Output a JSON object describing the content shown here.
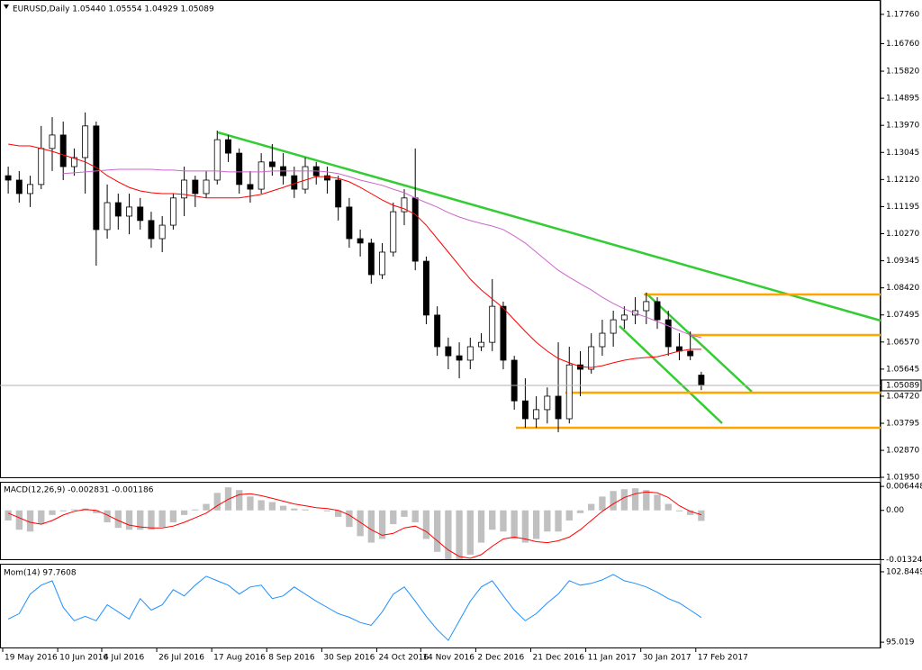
{
  "chart_data": [
    {
      "type": "candlestick",
      "title": "EURUSD,Daily 1.05440 1.05554 1.04929 1.05089",
      "categories": [
        "19 May 2016",
        null,
        null,
        null,
        null,
        "10 Jun 2016",
        null,
        null,
        null,
        "4 Jul 2016",
        null,
        null,
        null,
        null,
        "26 Jul 2016",
        null,
        null,
        null,
        null,
        "17 Aug 2016",
        null,
        null,
        null,
        null,
        "8 Sep 2016",
        null,
        null,
        null,
        null,
        "30 Sep 2016",
        null,
        null,
        null,
        null,
        "24 Oct 2016",
        null,
        null,
        null,
        "14 Nov 2016",
        null,
        null,
        null,
        null,
        "2 Dec 2016",
        null,
        null,
        null,
        null,
        "21 Dec 2016",
        null,
        null,
        null,
        null,
        "11 Jan 2017",
        null,
        null,
        null,
        null,
        "30 Jan 2017",
        null,
        null,
        null,
        null,
        "17 Feb 2017"
      ],
      "open": [
        1.1225,
        1.121,
        1.1164,
        1.1195,
        1.1318,
        1.1364,
        1.1256,
        1.1287,
        1.1395,
        1.1041,
        1.1133,
        1.1087,
        1.1118,
        1.1072,
        1.101,
        1.1056,
        1.1149,
        1.121,
        1.1164,
        1.121,
        1.1348,
        1.1302,
        1.1195,
        1.1179,
        1.1272,
        1.1256,
        1.1225,
        1.1179,
        1.1256,
        1.1225,
        1.121,
        1.1118,
        1.101,
        1.0995,
        1.0887,
        1.0964,
        1.1102,
        1.1149,
        1.0933,
        1.0749,
        1.0641,
        1.061,
        1.0595,
        1.0641,
        1.0656,
        1.0779,
        1.0595,
        1.0456,
        1.0395,
        1.0426,
        1.0472,
        1.0395,
        1.0579,
        1.0564,
        1.0641,
        1.0687,
        1.0733,
        1.0749,
        1.0764,
        1.0795,
        1.0733,
        1.0641,
        1.0626,
        1.0544
      ],
      "high": [
        1.1256,
        1.1241,
        1.1225,
        1.1395,
        1.1425,
        1.141,
        1.1318,
        1.1441,
        1.141,
        1.1195,
        1.1164,
        1.1164,
        1.1149,
        1.1102,
        1.1087,
        1.1164,
        1.1256,
        1.1225,
        1.1241,
        1.1379,
        1.1364,
        1.1318,
        1.1241,
        1.1302,
        1.1333,
        1.1302,
        1.1256,
        1.1287,
        1.1272,
        1.1256,
        1.1225,
        1.1149,
        1.1041,
        1.101,
        1.0995,
        1.1133,
        1.1179,
        1.1318,
        1.0949,
        1.0779,
        1.0672,
        1.0656,
        1.0672,
        1.0687,
        1.0872,
        1.0795,
        1.061,
        1.0533,
        1.0472,
        1.0502,
        1.0656,
        1.0641,
        1.0626,
        1.0687,
        1.0733,
        1.0764,
        1.0779,
        1.081,
        1.0826,
        1.081,
        1.0764,
        1.0687,
        1.0693,
        1.05554
      ],
      "low": [
        1.1164,
        1.1133,
        1.1118,
        1.1179,
        1.1241,
        1.121,
        1.1225,
        1.1164,
        1.0918,
        1.101,
        1.1041,
        1.1025,
        1.1041,
        1.0979,
        1.0964,
        1.1041,
        1.1087,
        1.1118,
        1.1149,
        1.1195,
        1.1272,
        1.1164,
        1.1133,
        1.1164,
        1.1225,
        1.1195,
        1.1149,
        1.1164,
        1.1195,
        1.1164,
        1.1072,
        1.0979,
        1.0949,
        1.0856,
        1.0872,
        1.0949,
        1.1056,
        1.0902,
        1.0718,
        1.061,
        1.0564,
        1.0533,
        1.0564,
        1.0626,
        1.0626,
        1.0564,
        1.0426,
        1.0364,
        1.0364,
        1.0379,
        1.0349,
        1.0379,
        1.0472,
        1.0549,
        1.061,
        1.0641,
        1.0702,
        1.0718,
        1.0718,
        1.0702,
        1.061,
        1.0595,
        1.0595,
        1.04929
      ],
      "close": [
        1.121,
        1.1164,
        1.1195,
        1.1318,
        1.1364,
        1.1256,
        1.1287,
        1.1395,
        1.1041,
        1.1133,
        1.1087,
        1.1118,
        1.1072,
        1.101,
        1.1056,
        1.1149,
        1.121,
        1.1164,
        1.121,
        1.1348,
        1.1302,
        1.1195,
        1.1179,
        1.1272,
        1.1256,
        1.1225,
        1.1179,
        1.1256,
        1.1225,
        1.121,
        1.1118,
        1.101,
        1.0995,
        1.0887,
        1.0964,
        1.1102,
        1.1149,
        1.0933,
        1.0749,
        1.0641,
        1.061,
        1.0595,
        1.0641,
        1.0656,
        1.0779,
        1.0595,
        1.0456,
        1.0395,
        1.0426,
        1.0472,
        1.0395,
        1.0579,
        1.0564,
        1.0641,
        1.0687,
        1.0733,
        1.0749,
        1.0764,
        1.0795,
        1.0733,
        1.0641,
        1.0626,
        1.061,
        1.05089
      ],
      "overlays": [
        {
          "color": "#ff0000",
          "values": [
            1.1333,
            1.1327,
            1.1327,
            1.1318,
            1.1308,
            1.1296,
            1.1284,
            1.1272,
            1.1253,
            1.1225,
            1.1204,
            1.1185,
            1.1173,
            1.1167,
            1.1164,
            1.1164,
            1.1161,
            1.1155,
            1.1149,
            1.1149,
            1.1149,
            1.1149,
            1.1155,
            1.1161,
            1.1173,
            1.1185,
            1.1198,
            1.121,
            1.1222,
            1.1222,
            1.1216,
            1.1204,
            1.1185,
            1.1164,
            1.1142,
            1.1124,
            1.1112,
            1.1093,
            1.1056,
            1.101,
            1.0964,
            1.0918,
            1.0872,
            1.0835,
            1.0804,
            1.0773,
            1.0733,
            1.0693,
            1.0656,
            1.0626,
            1.0601,
            1.0586,
            1.0573,
            1.057,
            1.0576,
            1.0586,
            1.0595,
            1.0601,
            1.0604,
            1.0607,
            1.0616,
            1.0626,
            1.0632,
            1.0632
          ]
        },
        {
          "color": "#cc66cc",
          "values": [
            null,
            null,
            null,
            null,
            null,
            1.1232,
            1.1235,
            1.1238,
            1.1241,
            1.1244,
            1.1247,
            1.1247,
            1.1247,
            1.1247,
            1.1244,
            1.1244,
            1.1241,
            1.1241,
            1.1241,
            1.1241,
            1.1238,
            1.1238,
            1.1238,
            1.1238,
            1.1241,
            1.1241,
            1.1241,
            1.1241,
            1.1241,
            1.1238,
            1.1232,
            1.1222,
            1.121,
            1.1201,
            1.1192,
            1.1179,
            1.1167,
            1.1149,
            1.1133,
            1.1118,
            1.1099,
            1.1084,
            1.1072,
            1.1062,
            1.1053,
            1.1041,
            1.1019,
            1.0995,
            1.0964,
            1.0933,
            1.0902,
            1.0878,
            1.0856,
            1.0835,
            1.081,
            1.0789,
            1.077,
            1.0755,
            1.0742,
            1.0727,
            1.0712,
            1.0696,
            1.0681,
            1.0672
          ]
        }
      ],
      "ylim": [
        1.0192,
        1.1822
      ],
      "yticks": [
        {
          "value": 1.1776,
          "label": "1.17760"
        },
        {
          "value": 1.1676,
          "label": "1.16760"
        },
        {
          "value": 1.1582,
          "label": "1.15820"
        },
        1.14895,
        {
          "value": 1.1397,
          "label": "1.13970"
        },
        1.13045,
        {
          "value": 1.1212,
          "label": "1.12120"
        },
        1.11195,
        {
          "value": 1.1027,
          "label": "1.10270"
        },
        1.09345,
        {
          "value": 1.0842,
          "label": "1.08420"
        },
        1.07495,
        {
          "value": 1.0657,
          "label": "1.06570"
        },
        1.05645,
        {
          "value": 1.0472,
          "label": "1.04720"
        },
        1.03795,
        {
          "value": 1.0287,
          "label": "1.02870"
        },
        {
          "value": 1.0195,
          "label": "1.01950"
        }
      ]
    },
    {
      "type": "macd",
      "title": "MACD(12,26,9) -0.002831 -0.001186",
      "color": "#c0c0c0",
      "values": [
        -0.00273,
        -0.00521,
        -0.0057,
        -0.00372,
        -0.00124,
        -0.00025,
        0.00025,
        0.0005,
        -0.00074,
        -0.00322,
        -0.00471,
        -0.00521,
        -0.00521,
        -0.00521,
        -0.00446,
        -0.00322,
        -0.00124,
        0.00025,
        0.00174,
        0.00471,
        0.0062,
        0.00546,
        0.00372,
        0.00273,
        0.00223,
        0.00124,
        0.0005,
        0.00025,
        0,
        -0.00025,
        -0.00174,
        -0.00446,
        -0.00694,
        -0.00868,
        -0.00769,
        -0.00372,
        -0.00174,
        -0.00322,
        -0.00769,
        -0.01116,
        -0.01314,
        -0.01314,
        -0.0119,
        -0.00868,
        -0.00521,
        -0.0057,
        -0.00769,
        -0.00868,
        -0.00769,
        -0.0057,
        -0.0057,
        -0.00273,
        -0.00074,
        0.00174,
        0.00372,
        0.00521,
        0.0057,
        0.00595,
        0.00546,
        0.00422,
        0.00174,
        -0.00025,
        -0.00124,
        -0.002831
      ],
      "signal": {
        "color": "#ff0000",
        "values": [
          -0.00074,
          -0.00198,
          -0.00322,
          -0.00372,
          -0.00273,
          -0.00124,
          -0.00025,
          0.00025,
          0,
          -0.00124,
          -0.00273,
          -0.00397,
          -0.00446,
          -0.00471,
          -0.00471,
          -0.00422,
          -0.00322,
          -0.00198,
          -0.00074,
          0.00124,
          0.00298,
          0.00422,
          0.00446,
          0.00397,
          0.00322,
          0.00248,
          0.00174,
          0.00124,
          0.00074,
          0.0005,
          0,
          -0.00124,
          -0.00322,
          -0.00521,
          -0.0067,
          -0.0062,
          -0.00471,
          -0.00422,
          -0.0057,
          -0.00818,
          -0.01066,
          -0.0124,
          -0.0129,
          -0.0119,
          -0.00967,
          -0.00769,
          -0.00719,
          -0.00769,
          -0.00843,
          -0.00868,
          -0.00818,
          -0.00719,
          -0.00521,
          -0.00273,
          -0.00025,
          0.00174,
          0.00347,
          0.00446,
          0.00496,
          0.00471,
          0.00347,
          0.00124,
          -0.00025,
          -0.001186
        ]
      },
      "ylim": [
        -0.01339,
        0.00769
      ],
      "yticks": [
        0.006448,
        {
          "value": 0,
          "label": "0.00"
        },
        -0.013248
      ]
    },
    {
      "type": "line",
      "title": "Mom(14) 97.7608",
      "color": "#1e90ff",
      "values": [
        97.59,
        98.19,
        100.37,
        101.36,
        101.85,
        98.88,
        97.4,
        97.89,
        97.4,
        99.18,
        98.39,
        97.59,
        99.87,
        98.58,
        99.18,
        100.86,
        100.17,
        101.36,
        102.35,
        101.85,
        101.36,
        100.37,
        101.16,
        101.36,
        99.87,
        100.17,
        101.16,
        100.37,
        99.58,
        98.88,
        98.19,
        97.79,
        97.2,
        96.9,
        98.39,
        100.37,
        101.16,
        99.58,
        97.89,
        96.41,
        95.22,
        97.4,
        99.58,
        101.16,
        101.85,
        100.17,
        98.58,
        97.4,
        98.19,
        99.38,
        100.37,
        101.85,
        101.36,
        101.56,
        101.95,
        102.55,
        101.85,
        101.56,
        101.16,
        100.57,
        99.87,
        99.38,
        98.58,
        97.7608
      ],
      "ylim": [
        94.33,
        103.64
      ],
      "yticks": [
        102.8449,
        95.019
      ]
    }
  ]
}
